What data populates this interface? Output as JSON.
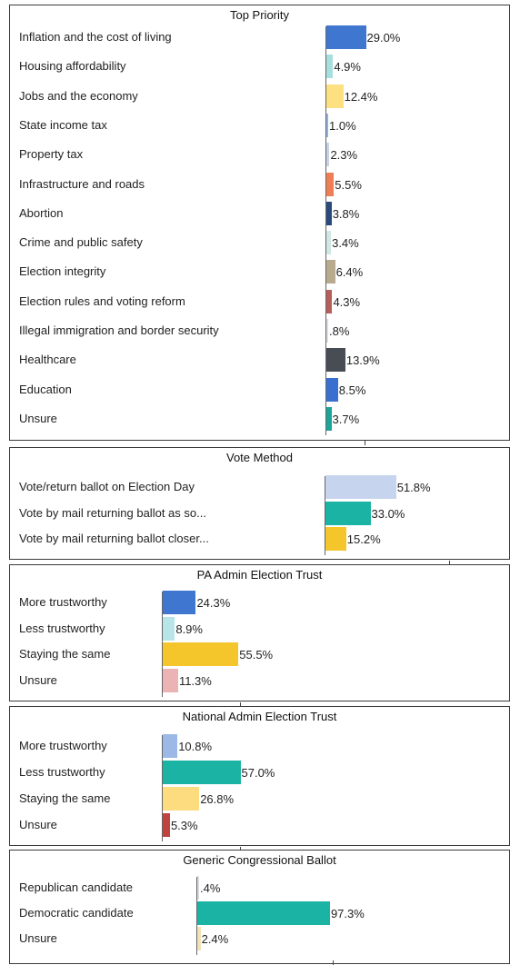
{
  "chart_data": [
    {
      "type": "bar",
      "orientation": "horizontal",
      "title": "Top Priority",
      "categories": [
        "Inflation and the cost of living",
        "Housing affordability",
        "Jobs and the economy",
        "State income tax",
        "Property tax",
        "Infrastructure and roads",
        "Abortion",
        "Crime and public safety",
        "Election integrity",
        "Election rules and voting reform",
        "Illegal immigration and border security",
        "Healthcare",
        "Education",
        "Unsure"
      ],
      "values": [
        29.0,
        4.9,
        12.4,
        1.0,
        2.3,
        5.5,
        3.8,
        3.4,
        6.4,
        4.3,
        0.8,
        13.9,
        8.5,
        3.7
      ],
      "value_labels": [
        "29.0%",
        "4.9%",
        "12.4%",
        "1.0%",
        "2.3%",
        "5.5%",
        "3.8%",
        "3.4%",
        "6.4%",
        "4.3%",
        ".8%",
        "13.9%",
        "8.5%",
        "3.7%"
      ],
      "colors": [
        "#3f77d0",
        "#a6e0de",
        "#fde07f",
        "#8fb3e6",
        "#c9d3e6",
        "#f07e55",
        "#2a4a7d",
        "#d0e7e3",
        "#b8aa8e",
        "#b85e5a",
        "#dcdce6",
        "#474c55",
        "#3a6fcf",
        "#1ba49a"
      ],
      "xlim": [
        0,
        100
      ]
    },
    {
      "type": "bar",
      "orientation": "horizontal",
      "title": "Vote Method",
      "categories": [
        "Vote/return ballot on Election Day",
        "Vote by mail returning ballot as so...",
        "Vote by mail returning ballot closer..."
      ],
      "values": [
        51.8,
        33.0,
        15.2
      ],
      "value_labels": [
        "51.8%",
        "33.0%",
        "15.2%"
      ],
      "colors": [
        "#c6d4ee",
        "#1bb3a3",
        "#f5c52c"
      ],
      "xlim": [
        0,
        100
      ]
    },
    {
      "type": "bar",
      "orientation": "horizontal",
      "title": "PA Admin Election Trust",
      "categories": [
        "More trustworthy",
        "Less trustworthy",
        "Staying the same",
        "Unsure"
      ],
      "values": [
        24.3,
        8.9,
        55.5,
        11.3
      ],
      "value_labels": [
        "24.3%",
        "8.9%",
        "55.5%",
        "11.3%"
      ],
      "colors": [
        "#3f77d0",
        "#b8e6e8",
        "#f5c52c",
        "#ebb3b3"
      ],
      "xlim": [
        0,
        100
      ]
    },
    {
      "type": "bar",
      "orientation": "horizontal",
      "title": "National Admin Election Trust",
      "categories": [
        "More trustworthy",
        "Less trustworthy",
        "Staying the same",
        "Unsure"
      ],
      "values": [
        10.8,
        57.0,
        26.8,
        5.3
      ],
      "value_labels": [
        "10.8%",
        "57.0%",
        "26.8%",
        "5.3%"
      ],
      "colors": [
        "#9bb8e6",
        "#1bb3a3",
        "#fddc80",
        "#c0433f"
      ],
      "xlim": [
        0,
        100
      ]
    },
    {
      "type": "bar",
      "orientation": "horizontal",
      "title": "Generic Congressional Ballot",
      "categories": [
        "Republican candidate",
        "Democratic candidate",
        "Unsure"
      ],
      "values": [
        0.4,
        97.3,
        2.4
      ],
      "value_labels": [
        ".4%",
        "97.3%",
        "2.4%"
      ],
      "colors": [
        "#d9d9e0",
        "#1bb3a3",
        "#f2e2b8"
      ],
      "xlim": [
        0,
        100
      ]
    }
  ]
}
